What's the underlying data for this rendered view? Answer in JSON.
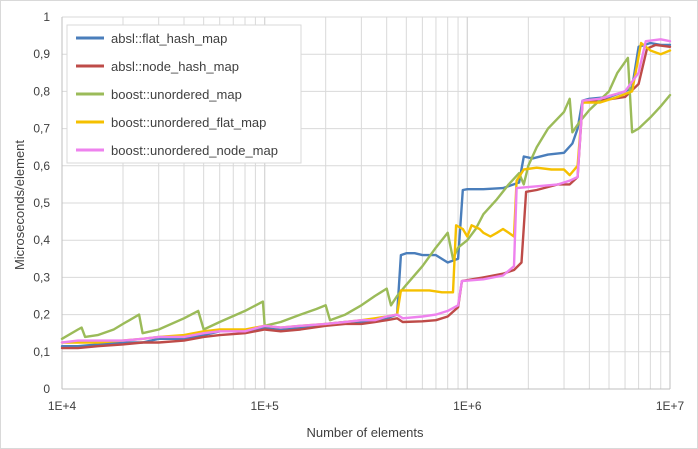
{
  "chart_data": {
    "type": "line",
    "title": "",
    "xlabel": "Number of elements",
    "ylabel": "Microseconds/element",
    "x_scale": "log",
    "xlim": [
      10000,
      10000000
    ],
    "ylim": [
      0,
      1
    ],
    "x_tick_labels": [
      "1E+4",
      "1E+5",
      "1E+6",
      "1E+7"
    ],
    "y_tick_labels": [
      "0",
      "0,1",
      "0,2",
      "0,3",
      "0,4",
      "0,5",
      "0,6",
      "0,7",
      "0,8",
      "0,9",
      "1"
    ],
    "grid": true,
    "legend_position": "top-left",
    "series": [
      {
        "name": "absl::flat_hash_map",
        "color": "#4a7ebb",
        "points": [
          [
            10000,
            0.115
          ],
          [
            12000,
            0.115
          ],
          [
            15000,
            0.12
          ],
          [
            20000,
            0.125
          ],
          [
            25000,
            0.125
          ],
          [
            30000,
            0.135
          ],
          [
            40000,
            0.135
          ],
          [
            50000,
            0.145
          ],
          [
            60000,
            0.155
          ],
          [
            80000,
            0.155
          ],
          [
            100000,
            0.165
          ],
          [
            120000,
            0.16
          ],
          [
            150000,
            0.165
          ],
          [
            200000,
            0.175
          ],
          [
            250000,
            0.18
          ],
          [
            300000,
            0.18
          ],
          [
            350000,
            0.185
          ],
          [
            400000,
            0.19
          ],
          [
            450000,
            0.2
          ],
          [
            470000,
            0.36
          ],
          [
            500000,
            0.365
          ],
          [
            550000,
            0.365
          ],
          [
            600000,
            0.36
          ],
          [
            700000,
            0.36
          ],
          [
            800000,
            0.34
          ],
          [
            900000,
            0.35
          ],
          [
            950000,
            0.535
          ],
          [
            1000000,
            0.537
          ],
          [
            1200000,
            0.537
          ],
          [
            1500000,
            0.54
          ],
          [
            1800000,
            0.555
          ],
          [
            1900000,
            0.625
          ],
          [
            2100000,
            0.62
          ],
          [
            2500000,
            0.63
          ],
          [
            3000000,
            0.635
          ],
          [
            3300000,
            0.66
          ],
          [
            3500000,
            0.7
          ],
          [
            3700000,
            0.775
          ],
          [
            4000000,
            0.78
          ],
          [
            5000000,
            0.785
          ],
          [
            6000000,
            0.8
          ],
          [
            6500000,
            0.81
          ],
          [
            7000000,
            0.92
          ],
          [
            8000000,
            0.93
          ],
          [
            9000000,
            0.925
          ],
          [
            10000000,
            0.925
          ]
        ]
      },
      {
        "name": "absl::node_hash_map",
        "color": "#be4b48",
        "points": [
          [
            10000,
            0.11
          ],
          [
            12000,
            0.11
          ],
          [
            15000,
            0.115
          ],
          [
            20000,
            0.12
          ],
          [
            25000,
            0.125
          ],
          [
            30000,
            0.125
          ],
          [
            40000,
            0.13
          ],
          [
            50000,
            0.14
          ],
          [
            60000,
            0.145
          ],
          [
            80000,
            0.15
          ],
          [
            100000,
            0.16
          ],
          [
            120000,
            0.155
          ],
          [
            150000,
            0.16
          ],
          [
            200000,
            0.17
          ],
          [
            250000,
            0.175
          ],
          [
            300000,
            0.175
          ],
          [
            350000,
            0.18
          ],
          [
            400000,
            0.185
          ],
          [
            450000,
            0.19
          ],
          [
            480000,
            0.18
          ],
          [
            600000,
            0.182
          ],
          [
            700000,
            0.185
          ],
          [
            800000,
            0.195
          ],
          [
            900000,
            0.22
          ],
          [
            940000,
            0.29
          ],
          [
            1200000,
            0.3
          ],
          [
            1500000,
            0.31
          ],
          [
            1700000,
            0.32
          ],
          [
            1850000,
            0.34
          ],
          [
            1950000,
            0.53
          ],
          [
            2200000,
            0.535
          ],
          [
            2800000,
            0.55
          ],
          [
            3200000,
            0.55
          ],
          [
            3500000,
            0.57
          ],
          [
            3700000,
            0.77
          ],
          [
            4500000,
            0.775
          ],
          [
            6000000,
            0.785
          ],
          [
            7000000,
            0.82
          ],
          [
            7700000,
            0.915
          ],
          [
            8500000,
            0.925
          ],
          [
            10000000,
            0.92
          ]
        ]
      },
      {
        "name": "boost::unordered_map",
        "color": "#9bbb59",
        "points": [
          [
            10000,
            0.135
          ],
          [
            12000,
            0.16
          ],
          [
            12500,
            0.165
          ],
          [
            13000,
            0.14
          ],
          [
            15000,
            0.145
          ],
          [
            18000,
            0.16
          ],
          [
            20000,
            0.175
          ],
          [
            24000,
            0.2
          ],
          [
            25000,
            0.15
          ],
          [
            30000,
            0.16
          ],
          [
            40000,
            0.19
          ],
          [
            47000,
            0.21
          ],
          [
            50000,
            0.16
          ],
          [
            60000,
            0.18
          ],
          [
            80000,
            0.21
          ],
          [
            98000,
            0.235
          ],
          [
            100000,
            0.17
          ],
          [
            120000,
            0.18
          ],
          [
            150000,
            0.2
          ],
          [
            180000,
            0.215
          ],
          [
            200000,
            0.225
          ],
          [
            210000,
            0.185
          ],
          [
            250000,
            0.2
          ],
          [
            300000,
            0.225
          ],
          [
            350000,
            0.25
          ],
          [
            400000,
            0.27
          ],
          [
            420000,
            0.225
          ],
          [
            450000,
            0.25
          ],
          [
            500000,
            0.28
          ],
          [
            600000,
            0.33
          ],
          [
            700000,
            0.38
          ],
          [
            800000,
            0.42
          ],
          [
            850000,
            0.35
          ],
          [
            900000,
            0.38
          ],
          [
            1000000,
            0.4
          ],
          [
            1100000,
            0.43
          ],
          [
            1200000,
            0.47
          ],
          [
            1400000,
            0.51
          ],
          [
            1600000,
            0.55
          ],
          [
            1800000,
            0.58
          ],
          [
            1900000,
            0.55
          ],
          [
            2000000,
            0.6
          ],
          [
            2200000,
            0.65
          ],
          [
            2500000,
            0.7
          ],
          [
            3000000,
            0.745
          ],
          [
            3200000,
            0.78
          ],
          [
            3300000,
            0.69
          ],
          [
            3600000,
            0.72
          ],
          [
            4000000,
            0.75
          ],
          [
            5000000,
            0.8
          ],
          [
            5500000,
            0.85
          ],
          [
            6200000,
            0.89
          ],
          [
            6500000,
            0.69
          ],
          [
            7000000,
            0.7
          ],
          [
            8000000,
            0.73
          ],
          [
            9000000,
            0.76
          ],
          [
            10000000,
            0.79
          ]
        ]
      },
      {
        "name": "boost::unordered_flat_map",
        "color": "#f5c000",
        "points": [
          [
            10000,
            0.125
          ],
          [
            12000,
            0.125
          ],
          [
            15000,
            0.125
          ],
          [
            20000,
            0.13
          ],
          [
            25000,
            0.135
          ],
          [
            30000,
            0.14
          ],
          [
            40000,
            0.145
          ],
          [
            50000,
            0.155
          ],
          [
            60000,
            0.16
          ],
          [
            80000,
            0.16
          ],
          [
            100000,
            0.17
          ],
          [
            120000,
            0.165
          ],
          [
            150000,
            0.17
          ],
          [
            200000,
            0.175
          ],
          [
            250000,
            0.18
          ],
          [
            300000,
            0.185
          ],
          [
            350000,
            0.19
          ],
          [
            400000,
            0.195
          ],
          [
            450000,
            0.2
          ],
          [
            470000,
            0.265
          ],
          [
            550000,
            0.265
          ],
          [
            650000,
            0.265
          ],
          [
            750000,
            0.26
          ],
          [
            850000,
            0.26
          ],
          [
            880000,
            0.44
          ],
          [
            950000,
            0.43
          ],
          [
            1000000,
            0.41
          ],
          [
            1050000,
            0.44
          ],
          [
            1150000,
            0.43
          ],
          [
            1200000,
            0.42
          ],
          [
            1300000,
            0.41
          ],
          [
            1400000,
            0.42
          ],
          [
            1500000,
            0.43
          ],
          [
            1600000,
            0.42
          ],
          [
            1700000,
            0.41
          ],
          [
            1750000,
            0.56
          ],
          [
            1900000,
            0.59
          ],
          [
            2200000,
            0.595
          ],
          [
            2600000,
            0.59
          ],
          [
            3000000,
            0.59
          ],
          [
            3200000,
            0.575
          ],
          [
            3500000,
            0.6
          ],
          [
            3700000,
            0.77
          ],
          [
            4500000,
            0.77
          ],
          [
            5500000,
            0.785
          ],
          [
            6500000,
            0.8
          ],
          [
            7200000,
            0.93
          ],
          [
            8000000,
            0.91
          ],
          [
            9000000,
            0.9
          ],
          [
            10000000,
            0.91
          ]
        ]
      },
      {
        "name": "boost::unordered_node_map",
        "color": "#ee82ee",
        "points": [
          [
            10000,
            0.125
          ],
          [
            12000,
            0.13
          ],
          [
            15000,
            0.13
          ],
          [
            20000,
            0.13
          ],
          [
            25000,
            0.135
          ],
          [
            30000,
            0.14
          ],
          [
            40000,
            0.14
          ],
          [
            50000,
            0.15
          ],
          [
            60000,
            0.155
          ],
          [
            80000,
            0.155
          ],
          [
            100000,
            0.17
          ],
          [
            120000,
            0.165
          ],
          [
            150000,
            0.17
          ],
          [
            200000,
            0.175
          ],
          [
            250000,
            0.18
          ],
          [
            300000,
            0.185
          ],
          [
            350000,
            0.185
          ],
          [
            400000,
            0.195
          ],
          [
            450000,
            0.2
          ],
          [
            480000,
            0.19
          ],
          [
            600000,
            0.195
          ],
          [
            700000,
            0.2
          ],
          [
            800000,
            0.21
          ],
          [
            900000,
            0.225
          ],
          [
            940000,
            0.29
          ],
          [
            1200000,
            0.295
          ],
          [
            1500000,
            0.305
          ],
          [
            1700000,
            0.33
          ],
          [
            1750000,
            0.54
          ],
          [
            2200000,
            0.545
          ],
          [
            2800000,
            0.55
          ],
          [
            3200000,
            0.56
          ],
          [
            3500000,
            0.57
          ],
          [
            3700000,
            0.775
          ],
          [
            4500000,
            0.78
          ],
          [
            6000000,
            0.8
          ],
          [
            7000000,
            0.85
          ],
          [
            7600000,
            0.935
          ],
          [
            9000000,
            0.94
          ],
          [
            10000000,
            0.935
          ]
        ]
      }
    ]
  }
}
